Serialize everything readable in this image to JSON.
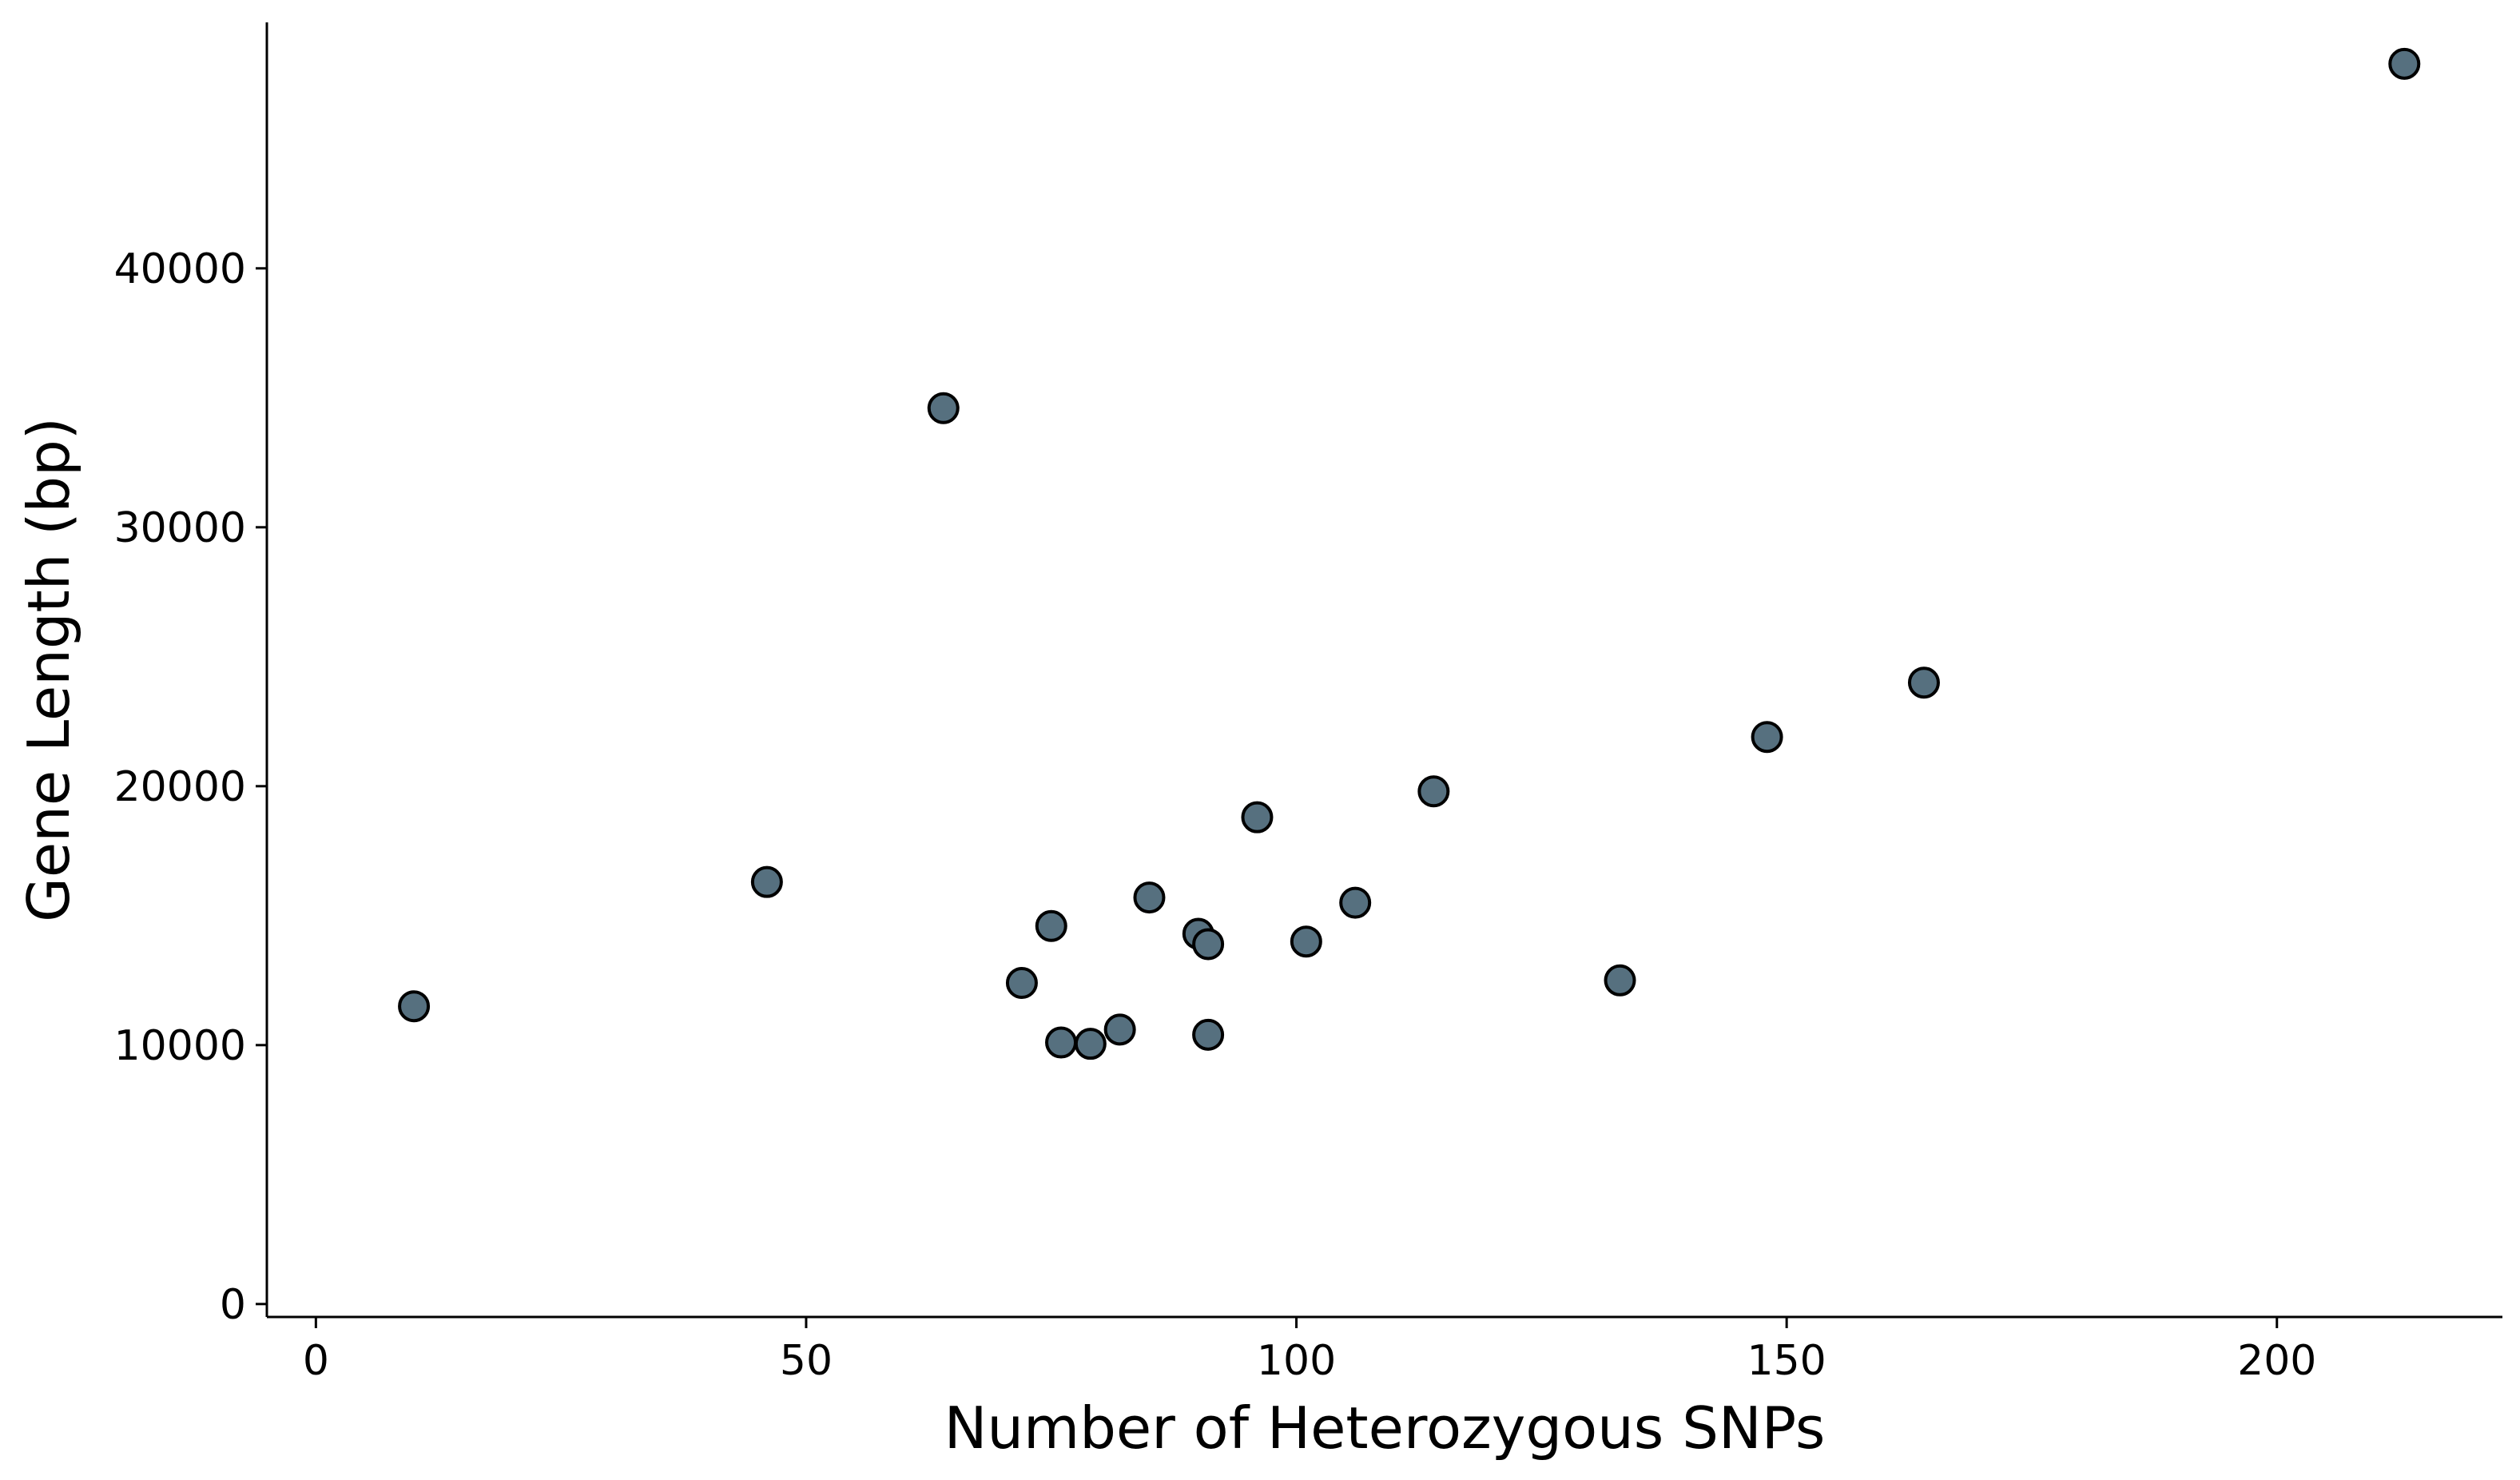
{
  "chart_data": {
    "type": "scatter",
    "title": "",
    "xlabel": "Number of Heterozygous SNPs",
    "ylabel": "Gene Length (bp)",
    "xlim": [
      -5,
      223
    ],
    "ylim": [
      -500,
      49500
    ],
    "x_ticks": [
      0,
      50,
      100,
      150,
      200
    ],
    "y_ticks": [
      0,
      10000,
      20000,
      30000,
      40000
    ],
    "grid": false,
    "legend": "none",
    "point_color": "#56707f",
    "series": [
      {
        "points": [
          {
            "x": 10,
            "y": 11500
          },
          {
            "x": 46,
            "y": 16300
          },
          {
            "x": 64,
            "y": 34600
          },
          {
            "x": 72,
            "y": 12400
          },
          {
            "x": 75,
            "y": 14600
          },
          {
            "x": 76,
            "y": 10100
          },
          {
            "x": 79,
            "y": 10050
          },
          {
            "x": 82,
            "y": 10600
          },
          {
            "x": 85,
            "y": 15700
          },
          {
            "x": 90,
            "y": 14300
          },
          {
            "x": 91,
            "y": 13900
          },
          {
            "x": 91,
            "y": 10400
          },
          {
            "x": 96,
            "y": 18800
          },
          {
            "x": 101,
            "y": 14000
          },
          {
            "x": 106,
            "y": 15500
          },
          {
            "x": 114,
            "y": 19800
          },
          {
            "x": 133,
            "y": 12500
          },
          {
            "x": 148,
            "y": 21900
          },
          {
            "x": 164,
            "y": 24000
          },
          {
            "x": 213,
            "y": 47900
          }
        ]
      }
    ]
  }
}
